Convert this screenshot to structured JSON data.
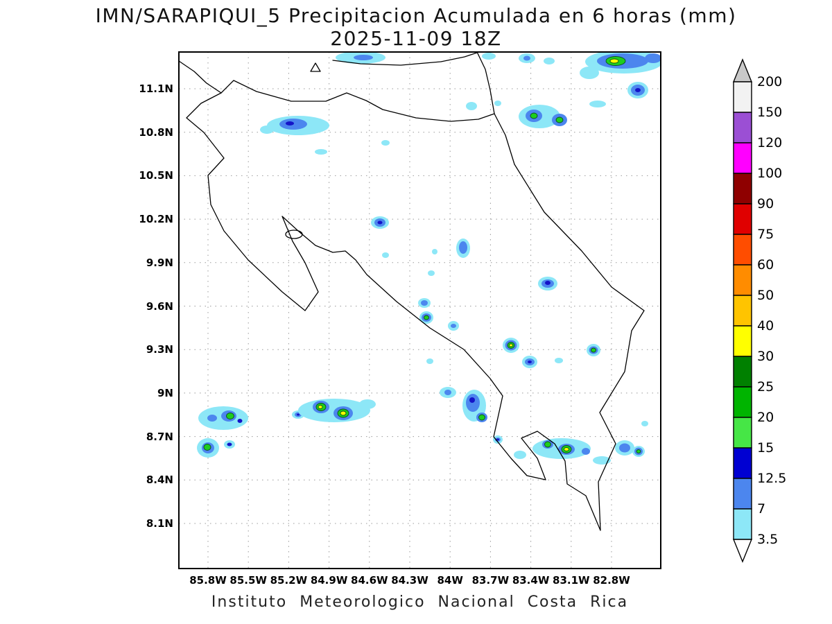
{
  "title": {
    "line1": "IMN/SARAPIQUI_5 Precipitacion Acumulada en 6 horas (mm)",
    "line2": "2025-11-09 18Z"
  },
  "caption": "Instituto Meteorologico Nacional Costa Rica",
  "axes": {
    "lat_ticks": [
      "11.1N",
      "10.8N",
      "10.5N",
      "10.2N",
      "9.9N",
      "9.6N",
      "9.3N",
      "9N",
      "8.7N",
      "8.4N",
      "8.1N"
    ],
    "lon_ticks": [
      "85.8W",
      "85.5W",
      "85.2W",
      "84.9W",
      "84.6W",
      "84.3W",
      "84W",
      "83.7W",
      "83.4W",
      "83.1W",
      "82.8W"
    ]
  },
  "colorbar": {
    "labels": [
      "200",
      "150",
      "120",
      "100",
      "90",
      "75",
      "60",
      "50",
      "40",
      "30",
      "25",
      "20",
      "15",
      "12.5",
      "7",
      "3.5"
    ],
    "bands": [
      "#f2f2f2",
      "#9b4fd4",
      "#ff00ff",
      "#8f0000",
      "#e00000",
      "#ff4d00",
      "#ff8c00",
      "#ffc400",
      "#ffff00",
      "#008000",
      "#00b400",
      "#46e646",
      "#0000d2",
      "#4c86ee",
      "#8de7f7"
    ],
    "top_arrow_color": "#c9c9c9",
    "bottom_arrow_color": "#ffffff"
  },
  "chart_data": {
    "type": "heatmap",
    "subtype": "precipitation-contour-map",
    "region": "Costa Rica",
    "units": "mm",
    "valid_time": "2025-11-09 18Z",
    "accumulation_hours": 6,
    "model": "IMN/SARAPIQUI_5",
    "levels": [
      3.5,
      7,
      12.5,
      15,
      20,
      25,
      30,
      40,
      50,
      60,
      75,
      90,
      100,
      120,
      150,
      200
    ],
    "legend_position": "right",
    "grid": "dotted",
    "lat_range": [
      8.1,
      11.1
    ],
    "lon_range": [
      85.8,
      82.8
    ],
    "level_colors": {
      "c": "#8de7f7",
      "b": "#4c86ee",
      "n": "#1414c8",
      "g": "#1ecd1e",
      "y": "#ffff00"
    },
    "cells": [
      {
        "rings": [
          [
            "c",
            262,
            8,
            36,
            9
          ],
          [
            "b",
            266,
            8,
            14,
            4
          ]
        ]
      },
      {
        "rings": [
          [
            "c",
            447,
            6,
            10,
            5
          ]
        ]
      },
      {
        "rings": [
          [
            "c",
            502,
            9,
            12,
            7
          ],
          [
            "b",
            502,
            9,
            5,
            3.5
          ]
        ]
      },
      {
        "rings": [
          [
            "c",
            534,
            13,
            8,
            5
          ]
        ]
      },
      {
        "rings": [
          [
            "c",
            642,
            14,
            56,
            17
          ],
          [
            "b",
            640,
            13,
            37,
            11
          ],
          [
            "g",
            630,
            13,
            14,
            6.5
          ],
          [
            "y",
            628,
            13,
            6,
            3
          ],
          [
            "b",
            684,
            9,
            12,
            7
          ],
          [
            "c",
            592,
            30,
            14,
            9
          ]
        ]
      },
      {
        "rings": [
          [
            "c",
            662,
            55,
            15,
            12
          ],
          [
            "b",
            662,
            55,
            10,
            8
          ],
          [
            "n",
            662,
            55,
            4,
            3
          ]
        ]
      },
      {
        "rings": [
          [
            "c",
            604,
            75,
            12,
            5
          ]
        ]
      },
      {
        "rings": [
          [
            "c",
            422,
            78,
            8,
            6
          ]
        ]
      },
      {
        "rings": [
          [
            "c",
            460,
            74,
            5,
            4
          ]
        ]
      },
      {
        "rings": [
          [
            "c",
            520,
            93,
            30,
            17
          ],
          [
            "b",
            512,
            92,
            12,
            9
          ],
          [
            "g",
            512,
            92,
            5,
            4
          ],
          [
            "b",
            549,
            98,
            11,
            9
          ],
          [
            "g",
            549,
            98,
            5,
            4
          ]
        ]
      },
      {
        "rings": [
          [
            "c",
            172,
            106,
            45,
            14
          ],
          [
            "b",
            165,
            104,
            20,
            8
          ],
          [
            "n",
            160,
            103,
            6,
            3
          ],
          [
            "c",
            127,
            112,
            10,
            6
          ]
        ]
      },
      {
        "rings": [
          [
            "c",
            298,
            131,
            6,
            4
          ]
        ]
      },
      {
        "rings": [
          [
            "c",
            205,
            144,
            9,
            4
          ]
        ]
      },
      {
        "rings": [
          [
            "c",
            290,
            246,
            13,
            9
          ],
          [
            "b",
            290,
            246,
            8,
            6
          ],
          [
            "n",
            290,
            246,
            3.5,
            2.5
          ]
        ]
      },
      {
        "rings": [
          [
            "c",
            298,
            293,
            5,
            4
          ]
        ]
      },
      {
        "rings": [
          [
            "c",
            369,
            288,
            4,
            4
          ]
        ]
      },
      {
        "rings": [
          [
            "c",
            410,
            283,
            10,
            14
          ],
          [
            "b",
            410,
            282,
            6,
            9
          ]
        ]
      },
      {
        "rings": [
          [
            "c",
            364,
            319,
            5,
            4
          ]
        ]
      },
      {
        "rings": [
          [
            "c",
            532,
            334,
            14,
            10
          ],
          [
            "b",
            532,
            334,
            9,
            6
          ],
          [
            "n",
            532,
            333,
            4,
            3
          ]
        ]
      },
      {
        "rings": [
          [
            "c",
            354,
            362,
            9,
            7
          ],
          [
            "b",
            354,
            362,
            5,
            4
          ]
        ]
      },
      {
        "rings": [
          [
            "c",
            357,
            383,
            10,
            9
          ],
          [
            "b",
            357,
            383,
            7,
            6
          ],
          [
            "g",
            357,
            383,
            3.5,
            3
          ]
        ]
      },
      {
        "rings": [
          [
            "c",
            396,
            395,
            8,
            7
          ],
          [
            "b",
            396,
            395,
            4,
            3
          ]
        ]
      },
      {
        "rings": [
          [
            "c",
            479,
            423,
            12,
            11
          ],
          [
            "b",
            479,
            423,
            8.5,
            7.5
          ],
          [
            "g",
            479,
            423,
            5,
            4.5
          ],
          [
            "y",
            479,
            423,
            2.5,
            2
          ]
        ]
      },
      {
        "rings": [
          [
            "c",
            506,
            447,
            11,
            9
          ],
          [
            "b",
            506,
            447,
            7,
            5
          ],
          [
            "n",
            506,
            447,
            3,
            2
          ]
        ]
      },
      {
        "rings": [
          [
            "c",
            548,
            445,
            6,
            4
          ]
        ]
      },
      {
        "rings": [
          [
            "c",
            598,
            430,
            10,
            9
          ],
          [
            "b",
            598,
            430,
            6.5,
            5.5
          ],
          [
            "g",
            598,
            430,
            3.5,
            3
          ]
        ]
      },
      {
        "rings": [
          [
            "c",
            362,
            446,
            5,
            4
          ]
        ]
      },
      {
        "rings": [
          [
            "c",
            388,
            491,
            12,
            8
          ],
          [
            "b",
            388,
            491,
            5,
            4
          ]
        ]
      },
      {
        "rings": [
          [
            "c",
            426,
            510,
            17,
            23
          ],
          [
            "b",
            424,
            506,
            10,
            13
          ],
          [
            "n",
            423,
            502,
            4,
            4
          ],
          [
            "b",
            437,
            527,
            8,
            7
          ],
          [
            "g",
            437,
            527,
            4.5,
            4
          ]
        ]
      },
      {
        "rings": [
          [
            "c",
            460,
            559,
            7,
            6
          ],
          [
            "b",
            460,
            559,
            4,
            3
          ],
          [
            "n",
            460,
            559,
            2,
            1.5
          ]
        ]
      },
      {
        "rings": [
          [
            "c",
            64,
            528,
            36,
            17
          ],
          [
            "b",
            72,
            525,
            11,
            8
          ],
          [
            "g",
            74,
            525,
            5.5,
            4.5
          ],
          [
            "n",
            88,
            532,
            3.5,
            3
          ],
          [
            "b",
            48,
            528,
            7,
            5
          ]
        ]
      },
      {
        "rings": [
          [
            "c",
            42,
            571,
            16,
            14
          ],
          [
            "b",
            42,
            571,
            9,
            8
          ],
          [
            "g",
            41,
            570,
            5,
            4.5
          ]
        ]
      },
      {
        "rings": [
          [
            "c",
            73,
            566,
            8,
            6
          ],
          [
            "n",
            73,
            566,
            3.5,
            2.5
          ]
        ]
      },
      {
        "rings": [
          [
            "c",
            172,
            523,
            9,
            6
          ],
          [
            "b",
            172,
            523,
            5,
            3.5
          ],
          [
            "n",
            172,
            523,
            2,
            1.5
          ]
        ]
      },
      {
        "rings": [
          [
            "c",
            224,
            517,
            52,
            17
          ],
          [
            "b",
            205,
            512,
            12,
            9
          ],
          [
            "g",
            205,
            512,
            7,
            5.5
          ],
          [
            "y",
            204,
            512,
            3,
            2.5
          ],
          [
            "b",
            237,
            521,
            14,
            10
          ],
          [
            "g",
            237,
            521,
            8,
            6
          ],
          [
            "y",
            237,
            521,
            4,
            3
          ],
          [
            "c",
            272,
            508,
            12,
            7
          ]
        ]
      },
      {
        "rings": [
          [
            "c",
            492,
            581,
            9,
            6
          ]
        ]
      },
      {
        "rings": [
          [
            "c",
            552,
            572,
            42,
            15
          ],
          [
            "b",
            532,
            566,
            8,
            6
          ],
          [
            "g",
            532,
            566,
            4.5,
            4
          ],
          [
            "b",
            559,
            573,
            12,
            8
          ],
          [
            "g",
            559,
            573,
            7,
            5.5
          ],
          [
            "y",
            559,
            573,
            3.5,
            2.5
          ],
          [
            "b",
            587,
            576,
            6,
            5
          ],
          [
            "c",
            610,
            589,
            13,
            6
          ]
        ]
      },
      {
        "rings": [
          [
            "c",
            643,
            571,
            14,
            11
          ],
          [
            "b",
            643,
            571,
            8,
            6.5
          ]
        ]
      },
      {
        "rings": [
          [
            "c",
            663,
            576,
            9,
            8
          ],
          [
            "b",
            663,
            576,
            6,
            5.5
          ],
          [
            "g",
            663,
            576,
            3,
            2.5
          ]
        ]
      },
      {
        "rings": [
          [
            "c",
            672,
            536,
            5,
            4
          ]
        ]
      }
    ]
  }
}
